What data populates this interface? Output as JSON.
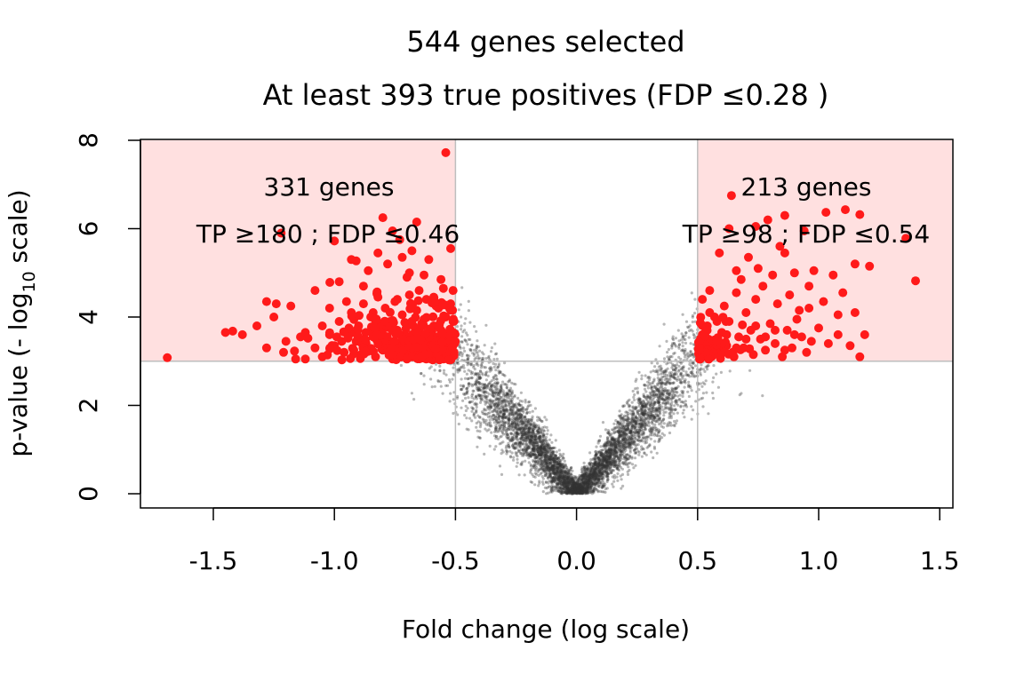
{
  "chart_data": {
    "type": "scatter",
    "title": "544 genes selected",
    "subtitle": "At least 393 true positives (FDP ≤0.28 )",
    "xlabel": "Fold change (log scale)",
    "ylabel": "p-value (- log10 scale)",
    "ylabel_parts": {
      "main": "p-value (- log",
      "sub": "10",
      "tail": " scale)"
    },
    "xlim": [
      -1.8,
      1.55
    ],
    "ylim": [
      0,
      8
    ],
    "x_ticks": [
      -1.5,
      -1.0,
      -0.5,
      0.0,
      0.5,
      1.0,
      1.5
    ],
    "x_tick_labels": [
      "-1.5",
      "-1.0",
      "-0.5",
      "0.0",
      "0.5",
      "1.0",
      "1.5"
    ],
    "y_ticks": [
      0,
      2,
      4,
      6,
      8
    ],
    "y_tick_labels": [
      "0",
      "2",
      "4",
      "6",
      "8"
    ],
    "thresholds": {
      "fold_change": [
        -0.5,
        0.5
      ],
      "neg_log10_p": 3
    },
    "grid": false,
    "colors": {
      "selected_points": "#ff1a1a",
      "background_points": "#333333",
      "selection_region": "#ffe0e0",
      "threshold_lines": "#bebebe"
    },
    "regions": [
      {
        "name": "down",
        "genes_label": "331 genes",
        "stats_label": "TP ≥180 ; FDP ≤0.46",
        "x_range": [
          -1.8,
          -0.5
        ],
        "y_range": [
          3,
          8
        ]
      },
      {
        "name": "up",
        "genes_label": "213 genes",
        "stats_label": "TP ≥98 ;  FDP ≤0.54",
        "x_range": [
          0.5,
          1.55
        ],
        "y_range": [
          3,
          8
        ]
      }
    ],
    "series": [
      {
        "role": "selected",
        "points": [
          [
            -1.69,
            3.08
          ],
          [
            -1.45,
            3.65
          ],
          [
            -1.42,
            3.68
          ],
          [
            -1.38,
            3.6
          ],
          [
            -1.32,
            3.8
          ],
          [
            -1.28,
            3.3
          ],
          [
            -1.28,
            4.35
          ],
          [
            -1.25,
            4.0
          ],
          [
            -1.24,
            4.3
          ],
          [
            -1.22,
            5.9
          ],
          [
            -1.21,
            3.2
          ],
          [
            -1.2,
            3.45
          ],
          [
            -1.18,
            4.25
          ],
          [
            -1.14,
            3.55
          ],
          [
            -1.12,
            3.05
          ],
          [
            -1.08,
            4.6
          ],
          [
            -1.05,
            3.8
          ],
          [
            -1.02,
            4.2
          ],
          [
            -1.0,
            5.72
          ],
          [
            -0.99,
            3.55
          ],
          [
            -0.98,
            4.8
          ],
          [
            -0.95,
            4.35
          ],
          [
            -0.93,
            5.3
          ],
          [
            -0.91,
            5.27
          ],
          [
            -0.88,
            4.7
          ],
          [
            -0.86,
            5.05
          ],
          [
            -0.84,
            4.1
          ],
          [
            -0.82,
            5.45
          ],
          [
            -0.8,
            6.25
          ],
          [
            -0.78,
            5.2
          ],
          [
            -0.76,
            5.95
          ],
          [
            -0.74,
            4.4
          ],
          [
            -0.73,
            5.75
          ],
          [
            -0.72,
            5.35
          ],
          [
            -0.7,
            4.9
          ],
          [
            -0.69,
            5.0
          ],
          [
            -0.68,
            5.5
          ],
          [
            -0.66,
            6.15
          ],
          [
            -0.65,
            4.6
          ],
          [
            -0.63,
            4.95
          ],
          [
            -0.61,
            5.3
          ],
          [
            -0.59,
            4.45
          ],
          [
            -0.57,
            4.2
          ],
          [
            -0.56,
            4.85
          ],
          [
            -0.55,
            4.65
          ],
          [
            -0.54,
            7.72
          ],
          [
            -0.52,
            5.55
          ],
          [
            -0.51,
            4.6
          ]
        ],
        "cluster_points": [
          [
            -1.05,
            3.1
          ],
          [
            -1.0,
            3.35
          ],
          [
            -0.98,
            3.9
          ],
          [
            -0.96,
            3.2
          ],
          [
            -0.94,
            3.6
          ],
          [
            -0.93,
            4.1
          ],
          [
            -0.91,
            3.45
          ],
          [
            -0.9,
            3.8
          ],
          [
            -0.89,
            3.15
          ],
          [
            -0.88,
            4.3
          ],
          [
            -0.87,
            3.65
          ],
          [
            -0.86,
            3.3
          ],
          [
            -0.85,
            4.0
          ],
          [
            -0.84,
            3.55
          ],
          [
            -0.83,
            3.1
          ],
          [
            -0.82,
            4.45
          ],
          [
            -0.81,
            3.75
          ],
          [
            -0.8,
            3.25
          ],
          [
            -0.79,
            4.2
          ],
          [
            -0.78,
            3.5
          ],
          [
            -0.77,
            3.9
          ],
          [
            -0.76,
            3.05
          ],
          [
            -0.75,
            4.35
          ],
          [
            -0.74,
            3.7
          ],
          [
            -0.73,
            3.35
          ],
          [
            -0.72,
            4.05
          ],
          [
            -0.71,
            3.2
          ],
          [
            -0.7,
            3.85
          ],
          [
            -0.69,
            4.5
          ],
          [
            -0.68,
            3.45
          ],
          [
            -0.67,
            3.1
          ],
          [
            -0.66,
            4.15
          ],
          [
            -0.65,
            3.65
          ],
          [
            -0.64,
            3.3
          ],
          [
            -0.63,
            3.95
          ],
          [
            -0.62,
            4.4
          ],
          [
            -0.61,
            3.55
          ],
          [
            -0.6,
            3.15
          ],
          [
            -0.59,
            3.8
          ],
          [
            -0.58,
            4.25
          ],
          [
            -0.57,
            3.4
          ],
          [
            -0.56,
            3.7
          ],
          [
            -0.55,
            3.05
          ],
          [
            -0.54,
            4.0
          ],
          [
            -0.53,
            3.5
          ],
          [
            -0.52,
            3.25
          ],
          [
            -0.51,
            3.9
          ],
          [
            -0.51,
            3.15
          ],
          [
            -0.52,
            4.3
          ],
          [
            -0.53,
            3.6
          ],
          [
            -0.56,
            3.15
          ],
          [
            -0.6,
            3.6
          ],
          [
            -0.64,
            3.85
          ],
          [
            -0.68,
            3.6
          ],
          [
            -0.72,
            3.55
          ],
          [
            -0.76,
            3.8
          ],
          [
            -0.8,
            3.6
          ],
          [
            -0.84,
            3.75
          ],
          [
            -0.88,
            3.5
          ],
          [
            -0.92,
            3.25
          ],
          [
            -0.97,
            3.45
          ],
          [
            -1.02,
            3.6
          ],
          [
            -1.08,
            3.3
          ],
          [
            -1.12,
            3.65
          ],
          [
            -1.16,
            3.05
          ]
        ],
        "up_points": [
          [
            0.51,
            3.05
          ],
          [
            0.52,
            3.6
          ],
          [
            0.52,
            4.4
          ],
          [
            0.53,
            3.25
          ],
          [
            0.54,
            3.8
          ],
          [
            0.55,
            3.1
          ],
          [
            0.55,
            4.6
          ],
          [
            0.56,
            3.45
          ],
          [
            0.57,
            4.0
          ],
          [
            0.58,
            3.2
          ],
          [
            0.59,
            5.45
          ],
          [
            0.6,
            3.65
          ],
          [
            0.61,
            4.25
          ],
          [
            0.62,
            3.35
          ],
          [
            0.63,
            3.9
          ],
          [
            0.63,
            6.0
          ],
          [
            0.64,
            6.75
          ],
          [
            0.65,
            3.1
          ],
          [
            0.66,
            4.55
          ],
          [
            0.67,
            3.55
          ],
          [
            0.68,
            4.85
          ],
          [
            0.69,
            3.3
          ],
          [
            0.7,
            4.1
          ],
          [
            0.71,
            5.35
          ],
          [
            0.72,
            3.7
          ],
          [
            0.73,
            3.15
          ],
          [
            0.74,
            4.4
          ],
          [
            0.75,
            5.1
          ],
          [
            0.76,
            3.5
          ],
          [
            0.77,
            4.7
          ],
          [
            0.78,
            3.25
          ],
          [
            0.79,
            6.2
          ],
          [
            0.8,
            3.85
          ],
          [
            0.81,
            4.95
          ],
          [
            0.82,
            3.4
          ],
          [
            0.83,
            4.3
          ],
          [
            0.84,
            5.6
          ],
          [
            0.85,
            3.1
          ],
          [
            0.86,
            6.3
          ],
          [
            0.87,
            3.7
          ],
          [
            0.88,
            4.5
          ],
          [
            0.89,
            3.3
          ],
          [
            0.9,
            5.0
          ],
          [
            0.91,
            3.95
          ],
          [
            0.92,
            4.15
          ],
          [
            0.93,
            3.55
          ],
          [
            0.94,
            5.95
          ],
          [
            0.95,
            3.2
          ],
          [
            0.96,
            4.7
          ],
          [
            0.97,
            3.45
          ],
          [
            0.98,
            5.05
          ],
          [
            1.0,
            3.75
          ],
          [
            1.02,
            4.35
          ],
          [
            1.03,
            6.37
          ],
          [
            1.04,
            3.4
          ],
          [
            1.06,
            4.95
          ],
          [
            1.08,
            3.6
          ],
          [
            1.1,
            4.55
          ],
          [
            1.11,
            6.43
          ],
          [
            1.13,
            3.35
          ],
          [
            1.15,
            4.1
          ],
          [
            1.15,
            5.2
          ],
          [
            1.17,
            3.1
          ],
          [
            1.17,
            6.32
          ],
          [
            1.19,
            3.6
          ],
          [
            1.21,
            5.15
          ],
          [
            1.36,
            5.78
          ],
          [
            1.4,
            4.82
          ],
          [
            0.55,
            4.1
          ],
          [
            0.58,
            3.9
          ],
          [
            0.62,
            3.6
          ],
          [
            0.66,
            3.3
          ],
          [
            0.7,
            3.5
          ],
          [
            0.74,
            3.8
          ],
          [
            0.78,
            3.55
          ],
          [
            0.82,
            3.7
          ],
          [
            0.86,
            3.25
          ],
          [
            0.9,
            3.6
          ],
          [
            0.66,
            5.05
          ],
          [
            0.74,
            6.05
          ],
          [
            0.86,
            5.45
          ],
          [
            0.96,
            4.2
          ],
          [
            1.08,
            4.05
          ]
        ]
      }
    ]
  }
}
